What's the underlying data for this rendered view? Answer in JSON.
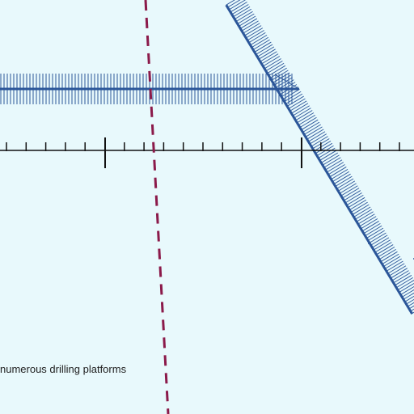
{
  "map": {
    "label": "numerous drilling platforms",
    "colors": {
      "water": "#e8f9fc",
      "boundary_line": "#8b1a4a",
      "pipeline": "#2b5699",
      "scale_bar": "#111111",
      "label_text": "#222222"
    },
    "features": [
      {
        "kind": "dashed-boundary",
        "icon": "dashed-boundary-line"
      },
      {
        "kind": "hatched-pipeline",
        "icon": "hatched-line-horizontal"
      },
      {
        "kind": "hatched-pipeline",
        "icon": "hatched-line-diagonal"
      },
      {
        "kind": "scale-bar",
        "icon": "scale-bar-ticks"
      }
    ]
  }
}
